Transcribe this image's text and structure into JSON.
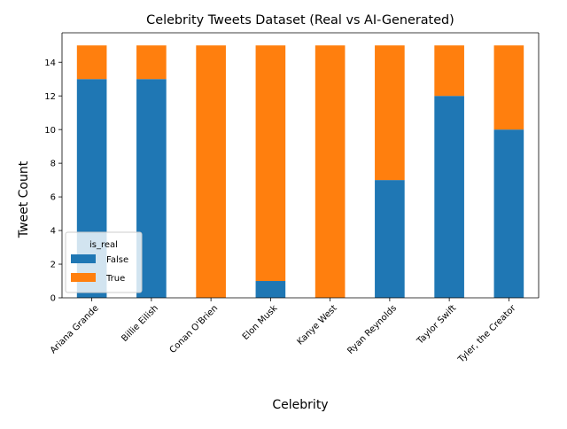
{
  "chart_data": {
    "type": "bar",
    "stacked": true,
    "title": "Celebrity Tweets Dataset (Real vs AI-Generated)",
    "xlabel": "Celebrity",
    "ylabel": "Tweet Count",
    "categories": [
      "Ariana Grande",
      "Billie Eilish",
      "Conan O'Brien",
      "Elon Musk",
      "Kanye West",
      "Ryan Reynolds",
      "Taylor Swift",
      "Tyler, the Creator"
    ],
    "series": [
      {
        "name": "False",
        "color": "#1f77b4",
        "values": [
          13,
          13,
          0,
          1,
          0,
          7,
          12,
          10
        ]
      },
      {
        "name": "True",
        "color": "#ff7f0e",
        "values": [
          2,
          2,
          15,
          14,
          15,
          8,
          3,
          5
        ]
      }
    ],
    "ylim": [
      0,
      15.75
    ],
    "yticks": [
      0,
      2,
      4,
      6,
      8,
      10,
      12,
      14
    ],
    "grid": false,
    "legend": {
      "title": "is_real",
      "placement": "lower-left"
    }
  }
}
